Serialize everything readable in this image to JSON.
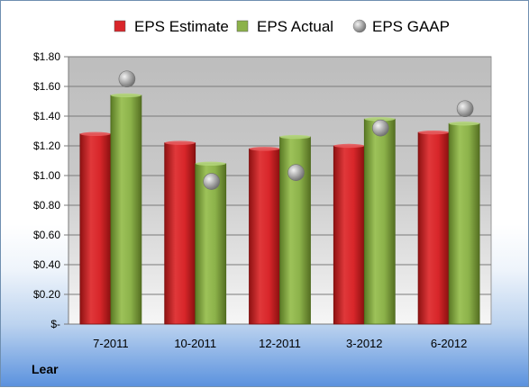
{
  "company": "Lear",
  "colors": {
    "estimate": "#d9262b",
    "actual": "#8cb24a",
    "gaap": "#b7b7b7"
  },
  "chart_data": {
    "type": "bar",
    "categories": [
      "7-2011",
      "10-2011",
      "12-2011",
      "3-2012",
      "6-2012"
    ],
    "series": [
      {
        "name": "EPS Estimate",
        "kind": "bar",
        "values": [
          1.28,
          1.22,
          1.18,
          1.2,
          1.29
        ]
      },
      {
        "name": "EPS Actual",
        "kind": "bar",
        "values": [
          1.54,
          1.08,
          1.26,
          1.38,
          1.35
        ]
      },
      {
        "name": "EPS GAAP",
        "kind": "marker",
        "values": [
          1.65,
          0.96,
          1.02,
          1.32,
          1.45
        ]
      }
    ],
    "ylim": [
      0,
      1.8
    ],
    "yticks": [
      0,
      0.2,
      0.4,
      0.6,
      0.8,
      1.0,
      1.2,
      1.4,
      1.6,
      1.8
    ],
    "ytick_labels": [
      "$-",
      "$0.20",
      "$0.40",
      "$0.60",
      "$0.80",
      "$1.00",
      "$1.20",
      "$1.40",
      "$1.60",
      "$1.80"
    ],
    "grid": true,
    "legend_position": "top"
  }
}
